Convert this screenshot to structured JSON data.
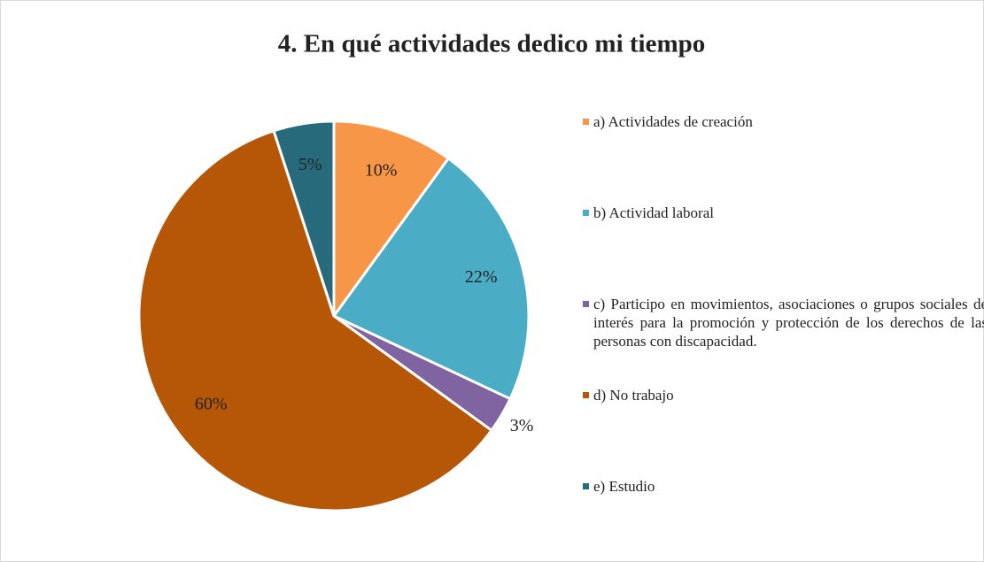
{
  "chart_data": {
    "type": "pie",
    "title": "4. En qué actividades dedico mi tiempo",
    "categories": [
      "a) Actividades de creación",
      "b) Actividad laboral",
      "c) Participo en movimientos, asociaciones o grupos sociales de interés para la promoción y protección de los derechos de las personas con discapacidad.",
      "d) No trabajo",
      "e) Estudio"
    ],
    "values": [
      10,
      22,
      3,
      60,
      5
    ],
    "value_labels": [
      "10%",
      "22%",
      "3%",
      "60%",
      "5%"
    ],
    "colors": [
      "#f79646",
      "#4bacc6",
      "#8064a2",
      "#b65708",
      "#276a7c"
    ],
    "legend": "right"
  }
}
